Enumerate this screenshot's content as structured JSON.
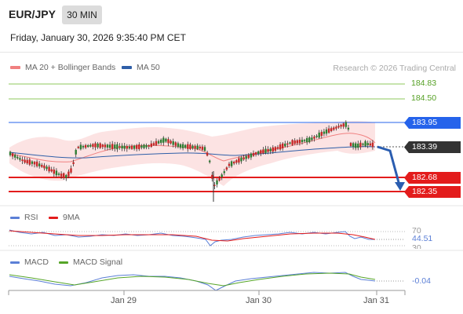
{
  "header": {
    "pair": "EUR/JPY",
    "timeframe": "30 MIN",
    "datetime": "Friday, January 30, 2026 9:35:40 PM CET"
  },
  "legend": [
    {
      "label": "MA 20 + Bollinger Bands",
      "color": "#f08080"
    },
    {
      "label": "MA 50",
      "color": "#2f5fa8"
    }
  ],
  "credit": "Research © 2026 Trading Central",
  "levels": {
    "resistance_2": "184.83",
    "resistance_1": "184.50",
    "pivot": "183.95",
    "last": "183.39",
    "support_1": "182.68",
    "support_2": "182.35"
  },
  "colors": {
    "resistance": "#7cbb4a",
    "pivot": "#2563eb",
    "support": "#e31c1c",
    "last": "#333333"
  },
  "rsi": {
    "legend": [
      {
        "label": "RSI",
        "color": "#5b7fd6"
      },
      {
        "label": "9MA",
        "color": "#e31c1c"
      }
    ],
    "level_70": "70",
    "value": "44.51",
    "level_30": "30"
  },
  "macd": {
    "legend": [
      {
        "label": "MACD",
        "color": "#5b7fd6"
      },
      {
        "label": "MACD Signal",
        "color": "#56a528"
      }
    ],
    "value": "-0.04"
  },
  "xaxis": {
    "labels": [
      "Jan 29",
      "Jan 30",
      "Jan 31"
    ]
  }
}
